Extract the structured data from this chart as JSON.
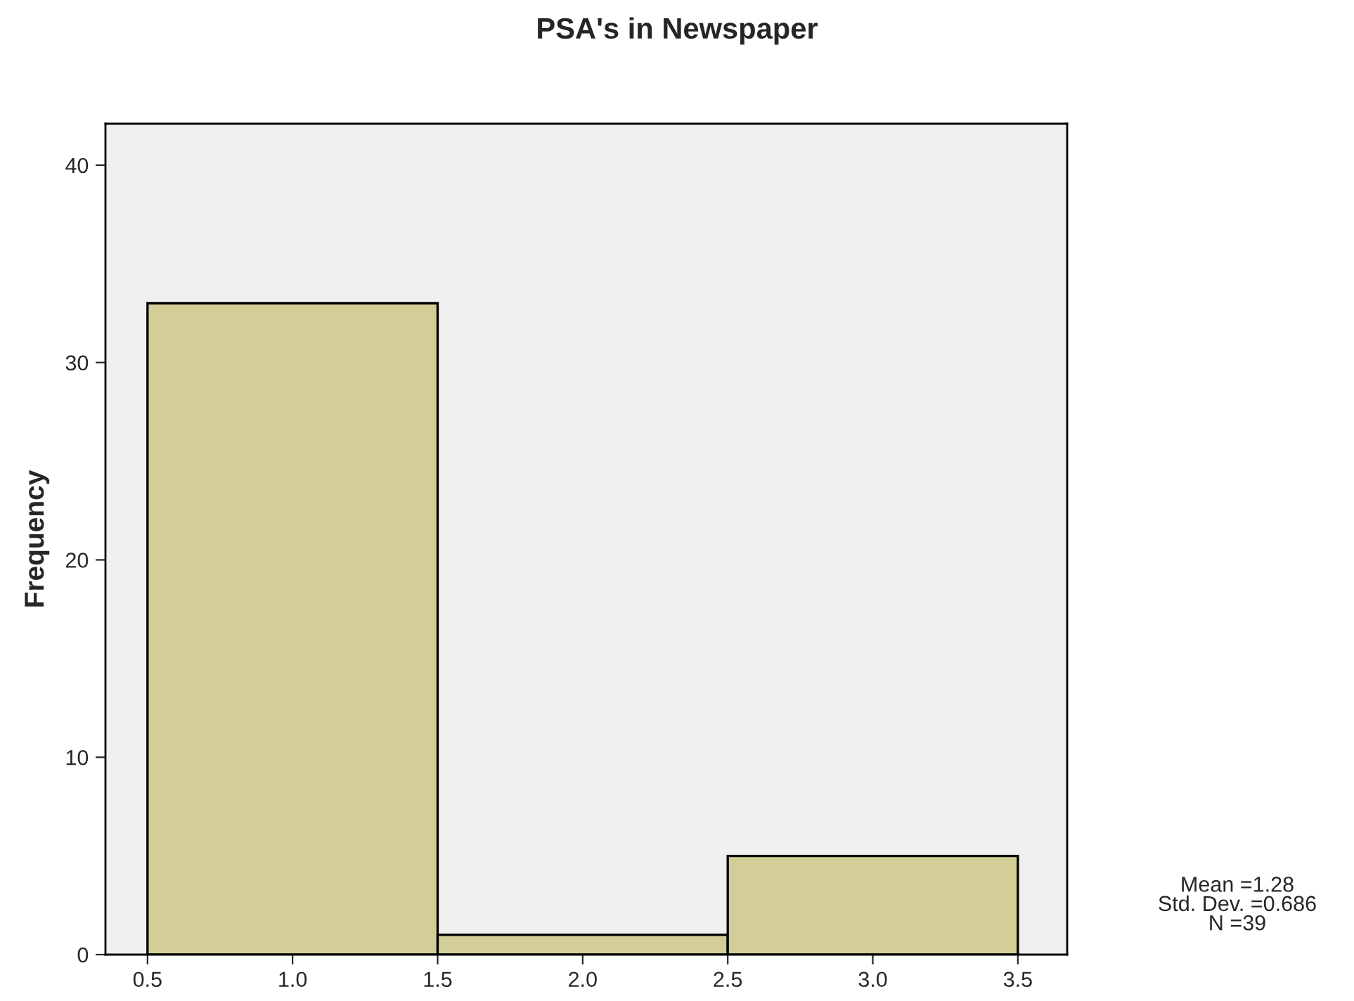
{
  "chart_data": {
    "type": "histogram",
    "title": "PSA's in Newspaper",
    "ylabel": "Frequency",
    "bins": [
      0.5,
      1.5,
      2.5,
      3.5
    ],
    "values": [
      33,
      1,
      5
    ],
    "color": "#d3ce97",
    "xlim": [
      0.355,
      3.67
    ],
    "ylim": [
      0,
      42.1
    ],
    "xticks": [
      0.5,
      {
        "value": 1,
        "label": "1.0"
      },
      1.5,
      {
        "value": 2,
        "label": "2.0"
      },
      2.5,
      {
        "value": 3,
        "label": "3.0"
      },
      3.5
    ],
    "yticks": [
      0,
      10,
      20,
      30,
      40
    ],
    "grid": false,
    "annotations": [
      "Mean =1.28",
      "Std. Dev. =0.686",
      "N =39"
    ]
  }
}
